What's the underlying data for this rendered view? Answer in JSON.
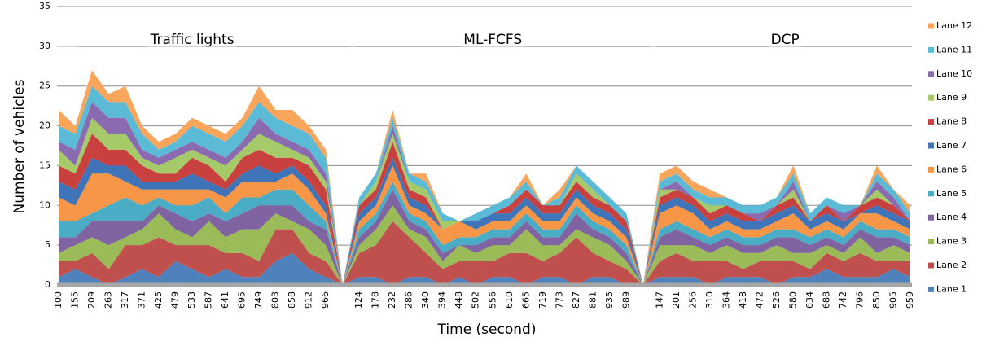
{
  "chart_data": {
    "type": "stacked_area",
    "x_label": "Time (second)",
    "y_label": "Number of vehicles",
    "annotations": [
      "Traffic lights",
      "ML-FCFS",
      "DCP"
    ],
    "categories": [
      "100",
      "155",
      "209",
      "263",
      "317",
      "371",
      "425",
      "479",
      "533",
      "587",
      "641",
      "695",
      "749",
      "803",
      "858",
      "912",
      "966",
      null,
      "124",
      "178",
      "232",
      "286",
      "340",
      "394",
      "448",
      "502",
      "556",
      "610",
      "665",
      "719",
      "773",
      "827",
      "881",
      "935",
      "989",
      null,
      "147",
      "201",
      "256",
      "310",
      "364",
      "418",
      "472",
      "526",
      "580",
      "634",
      "688",
      "742",
      "796",
      "850",
      "905",
      "959"
    ],
    "ylim": [
      0,
      35
    ],
    "yticks": [
      0,
      5,
      10,
      15,
      20,
      25,
      30,
      35
    ],
    "grid": true,
    "legend": "right",
    "series": [
      {
        "name": "Lane 1",
        "color": "#4f81bd",
        "values": [
          1,
          2,
          1,
          0,
          1,
          2,
          1,
          3,
          2,
          1,
          2,
          1,
          1,
          3,
          4,
          2,
          1,
          0,
          1,
          1,
          0,
          1,
          1,
          0,
          1,
          0,
          1,
          1,
          0,
          1,
          1,
          0,
          1,
          1,
          0,
          0,
          1,
          1,
          1,
          0,
          1,
          1,
          1,
          0,
          1,
          1,
          2,
          1,
          1,
          1,
          2,
          1
        ]
      },
      {
        "name": "Lane 2",
        "color": "#c0504d",
        "values": [
          2,
          1,
          3,
          2,
          4,
          3,
          5,
          2,
          3,
          4,
          2,
          3,
          2,
          4,
          3,
          2,
          2,
          0,
          3,
          4,
          8,
          5,
          3,
          2,
          2,
          3,
          2,
          3,
          4,
          2,
          3,
          6,
          3,
          2,
          2,
          0,
          2,
          3,
          2,
          3,
          2,
          1,
          2,
          3,
          2,
          1,
          2,
          2,
          3,
          2,
          1,
          2
        ]
      },
      {
        "name": "Lane 3",
        "color": "#9bbb59",
        "values": [
          1,
          2,
          2,
          3,
          1,
          2,
          3,
          2,
          1,
          3,
          2,
          3,
          4,
          2,
          1,
          3,
          2,
          0,
          1,
          2,
          2,
          1,
          2,
          1,
          2,
          1,
          2,
          1,
          3,
          2,
          1,
          1,
          2,
          2,
          1,
          0,
          2,
          1,
          2,
          1,
          2,
          2,
          1,
          2,
          1,
          2,
          1,
          1,
          2,
          1,
          2,
          1
        ]
      },
      {
        "name": "Lane 4",
        "color": "#8064a2",
        "values": [
          2,
          1,
          2,
          3,
          2,
          1,
          1,
          2,
          2,
          1,
          2,
          2,
          3,
          1,
          2,
          1,
          2,
          0,
          1,
          1,
          2,
          1,
          1,
          1,
          0,
          1,
          1,
          1,
          1,
          1,
          1,
          2,
          1,
          1,
          1,
          0,
          1,
          2,
          1,
          1,
          1,
          1,
          1,
          1,
          2,
          1,
          1,
          1,
          1,
          2,
          1,
          1
        ]
      },
      {
        "name": "Lane 5",
        "color": "#4bacc6",
        "values": [
          2,
          2,
          1,
          2,
          3,
          2,
          1,
          1,
          2,
          2,
          1,
          2,
          1,
          2,
          2,
          2,
          1,
          0,
          1,
          1,
          1,
          1,
          1,
          1,
          1,
          1,
          1,
          1,
          1,
          1,
          1,
          1,
          1,
          1,
          1,
          0,
          1,
          1,
          1,
          1,
          1,
          1,
          1,
          1,
          1,
          1,
          1,
          1,
          1,
          1,
          1,
          1
        ]
      },
      {
        "name": "Lane 6",
        "color": "#f79646",
        "values": [
          3,
          2,
          5,
          4,
          2,
          2,
          1,
          2,
          2,
          1,
          2,
          2,
          2,
          1,
          2,
          2,
          1,
          0,
          1,
          1,
          2,
          1,
          1,
          2,
          2,
          1,
          1,
          1,
          1,
          1,
          1,
          1,
          1,
          1,
          1,
          0,
          2,
          2,
          2,
          1,
          1,
          1,
          1,
          1,
          2,
          1,
          1,
          1,
          1,
          2,
          1,
          1
        ]
      },
      {
        "name": "Lane 7",
        "color": "#3f74b8",
        "values": [
          2,
          2,
          2,
          1,
          2,
          1,
          1,
          1,
          2,
          1,
          1,
          1,
          2,
          1,
          1,
          1,
          1,
          0,
          1,
          1,
          1,
          1,
          1,
          0,
          0,
          1,
          1,
          1,
          1,
          1,
          1,
          1,
          1,
          1,
          1,
          0,
          1,
          1,
          1,
          1,
          1,
          1,
          1,
          1,
          1,
          1,
          1,
          1,
          0,
          1,
          1,
          1
        ]
      },
      {
        "name": "Lane 8",
        "color": "#c9413e",
        "values": [
          2,
          2,
          3,
          2,
          2,
          2,
          1,
          1,
          2,
          2,
          1,
          2,
          2,
          2,
          1,
          2,
          2,
          0,
          1,
          1,
          2,
          1,
          1,
          0,
          0,
          0,
          0,
          1,
          1,
          1,
          1,
          1,
          1,
          1,
          1,
          0,
          1,
          1,
          1,
          1,
          1,
          1,
          0,
          1,
          1,
          0,
          1,
          0,
          1,
          1,
          1,
          0
        ]
      },
      {
        "name": "Lane 9",
        "color": "#a6c96a",
        "values": [
          2,
          1,
          2,
          2,
          2,
          1,
          1,
          2,
          1,
          1,
          2,
          1,
          2,
          2,
          1,
          1,
          1,
          0,
          0,
          1,
          1,
          1,
          1,
          1,
          0,
          0,
          0,
          0,
          0,
          0,
          0,
          1,
          1,
          0,
          0,
          0,
          1,
          0,
          0,
          1,
          0,
          0,
          0,
          0,
          1,
          0,
          0,
          0,
          0,
          1,
          0,
          0
        ]
      },
      {
        "name": "Lane 10",
        "color": "#8a6bb0",
        "values": [
          1,
          2,
          2,
          2,
          2,
          1,
          1,
          1,
          1,
          1,
          1,
          1,
          2,
          1,
          1,
          1,
          1,
          0,
          0,
          0,
          1,
          0,
          0,
          0,
          0,
          0,
          0,
          0,
          0,
          0,
          0,
          0,
          0,
          0,
          0,
          0,
          0,
          1,
          0,
          0,
          0,
          0,
          1,
          0,
          1,
          0,
          0,
          1,
          0,
          1,
          1,
          0
        ]
      },
      {
        "name": "Lane 11",
        "color": "#5bbad6",
        "values": [
          2,
          2,
          2,
          2,
          2,
          2,
          1,
          1,
          2,
          2,
          2,
          2,
          2,
          2,
          2,
          2,
          2,
          0,
          1,
          1,
          1,
          1,
          1,
          1,
          0,
          1,
          1,
          1,
          1,
          0,
          1,
          1,
          1,
          1,
          1,
          0,
          1,
          1,
          1,
          1,
          1,
          1,
          1,
          1,
          1,
          1,
          1,
          1,
          0,
          1,
          1,
          1
        ]
      },
      {
        "name": "Lane 12",
        "color": "#f9a55c",
        "values": [
          2,
          1,
          2,
          1,
          2,
          1,
          1,
          1,
          1,
          1,
          1,
          1,
          2,
          1,
          2,
          1,
          1,
          0,
          0,
          0,
          1,
          0,
          1,
          0,
          0,
          0,
          0,
          0,
          1,
          0,
          1,
          0,
          0,
          0,
          0,
          0,
          1,
          1,
          1,
          1,
          0,
          0,
          0,
          0,
          1,
          0,
          0,
          0,
          0,
          1,
          0,
          1
        ]
      }
    ]
  }
}
